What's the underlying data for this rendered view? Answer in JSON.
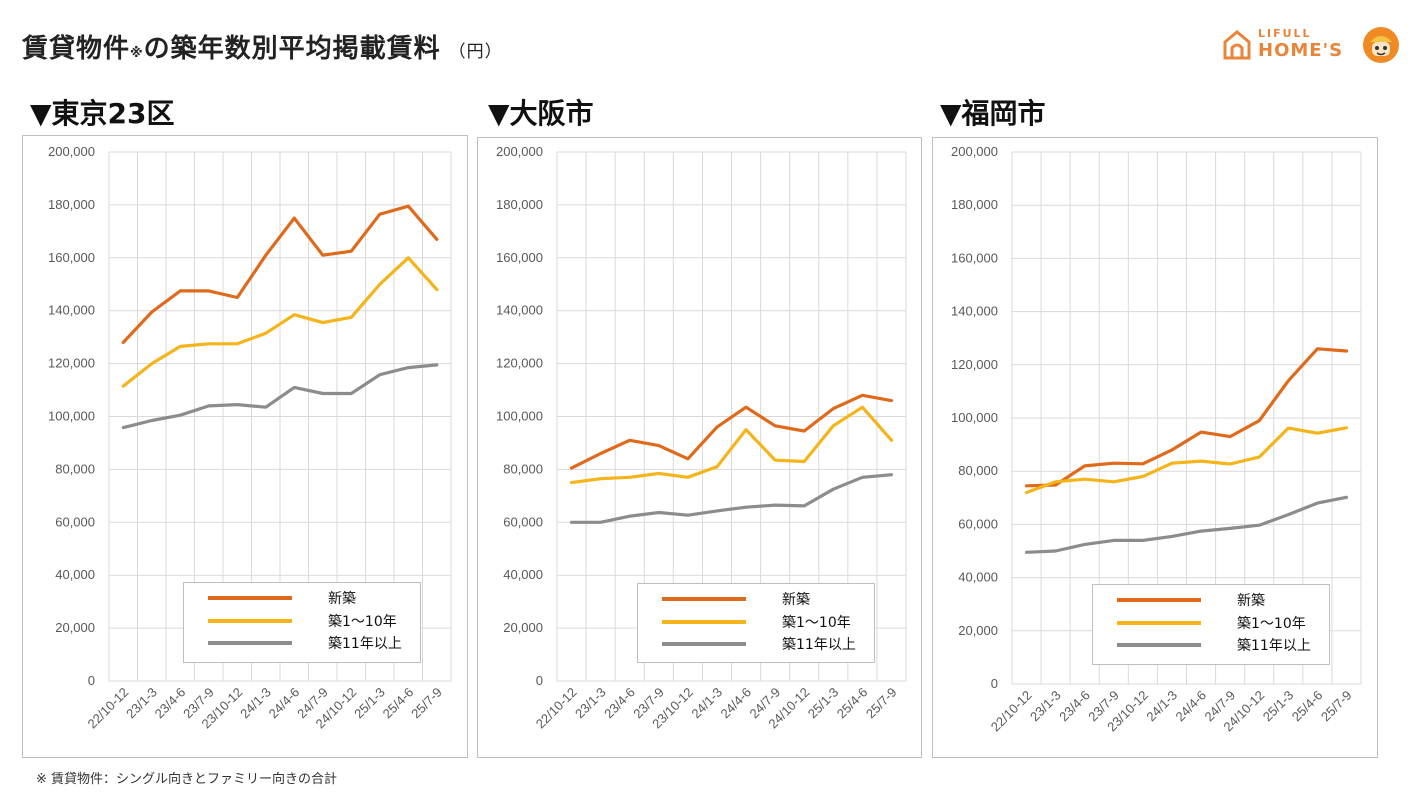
{
  "header": {
    "title": "賃貸物件",
    "title_mark": "※",
    "title_rest": "の築年数別平均掲載賃料",
    "unit": "（円）"
  },
  "logo": {
    "line1": "LIFULL",
    "line2": "HOME'S",
    "color": "#e8853a"
  },
  "footnote": "※ 賃貸物件：シングル向きとファミリー向きの合計",
  "colors": {
    "shinchiku": "#e06a1b",
    "chiku1_10": "#f4b41a",
    "chiku11": "#8c8c8c",
    "grid": "#d9d9d9"
  },
  "legend": [
    "新築",
    "築1～10年",
    "築11年以上"
  ],
  "chart_data": [
    {
      "type": "line",
      "title": "▼東京23区",
      "categories": [
        "22/10-12",
        "23/1-3",
        "23/4-6",
        "23/7-9",
        "23/10-12",
        "24/1-3",
        "24/4-6",
        "24/7-9",
        "24/10-12",
        "25/1-3",
        "25/4-6",
        "25/7-9"
      ],
      "ylim": [
        0,
        200000
      ],
      "yticks": [
        "0",
        "20,000",
        "40,000",
        "60,000",
        "80,000",
        "100,000",
        "120,000",
        "140,000",
        "160,000",
        "180,000",
        "200,000"
      ],
      "grid": true,
      "legend_position": "bottom-right",
      "series": [
        {
          "name": "新築",
          "values": [
            128000,
            139500,
            147500,
            147500,
            145000,
            161000,
            175000,
            161000,
            162500,
            176500,
            179500,
            167000
          ]
        },
        {
          "name": "築1～10年",
          "values": [
            111500,
            120000,
            126500,
            127500,
            127500,
            131500,
            138500,
            135500,
            137500,
            150000,
            160000,
            148000
          ]
        },
        {
          "name": "築11年以上",
          "values": [
            95800,
            98500,
            100500,
            104000,
            104500,
            103500,
            111000,
            108700,
            108700,
            115800,
            118500,
            119500
          ]
        }
      ]
    },
    {
      "type": "line",
      "title": "▼大阪市",
      "categories": [
        "22/10-12",
        "23/1-3",
        "23/4-6",
        "23/7-9",
        "23/10-12",
        "24/1-3",
        "24/4-6",
        "24/7-9",
        "24/10-12",
        "25/1-3",
        "25/4-6",
        "25/7-9"
      ],
      "ylim": [
        0,
        200000
      ],
      "yticks": [
        "0",
        "20,000",
        "40,000",
        "60,000",
        "80,000",
        "100,000",
        "120,000",
        "140,000",
        "160,000",
        "180,000",
        "200,000"
      ],
      "grid": true,
      "legend_position": "bottom-right",
      "series": [
        {
          "name": "新築",
          "values": [
            80500,
            86000,
            91000,
            89000,
            84000,
            96000,
            103500,
            96500,
            94500,
            103000,
            108000,
            106000
          ]
        },
        {
          "name": "築1～10年",
          "values": [
            75000,
            76500,
            77000,
            78500,
            77000,
            81000,
            95000,
            83500,
            83000,
            96500,
            103500,
            91000
          ]
        },
        {
          "name": "築11年以上",
          "values": [
            60000,
            60000,
            62300,
            63700,
            62700,
            64300,
            65700,
            66500,
            66200,
            72500,
            77000,
            78000
          ]
        }
      ]
    },
    {
      "type": "line",
      "title": "▼福岡市",
      "categories": [
        "22/10-12",
        "23/1-3",
        "23/4-6",
        "23/7-9",
        "23/10-12",
        "24/1-3",
        "24/4-6",
        "24/7-9",
        "24/10-12",
        "25/1-3",
        "25/4-6",
        "25/7-9"
      ],
      "ylim": [
        0,
        200000
      ],
      "yticks": [
        "0",
        "20,000",
        "40,000",
        "60,000",
        "80,000",
        "100,000",
        "120,000",
        "140,000",
        "160,000",
        "180,000",
        "200,000"
      ],
      "grid": true,
      "legend_position": "bottom-right",
      "series": [
        {
          "name": "新築",
          "values": [
            74500,
            74800,
            82000,
            83000,
            82800,
            88000,
            94700,
            93000,
            99000,
            114000,
            126000,
            125200
          ]
        },
        {
          "name": "築1～10年",
          "values": [
            72000,
            76000,
            77000,
            76000,
            78000,
            83000,
            83800,
            82700,
            85300,
            96200,
            94300,
            96300
          ]
        },
        {
          "name": "築11年以上",
          "values": [
            49500,
            50000,
            52500,
            54000,
            54000,
            55500,
            57500,
            58500,
            59700,
            63700,
            68000,
            70200
          ]
        }
      ]
    }
  ]
}
